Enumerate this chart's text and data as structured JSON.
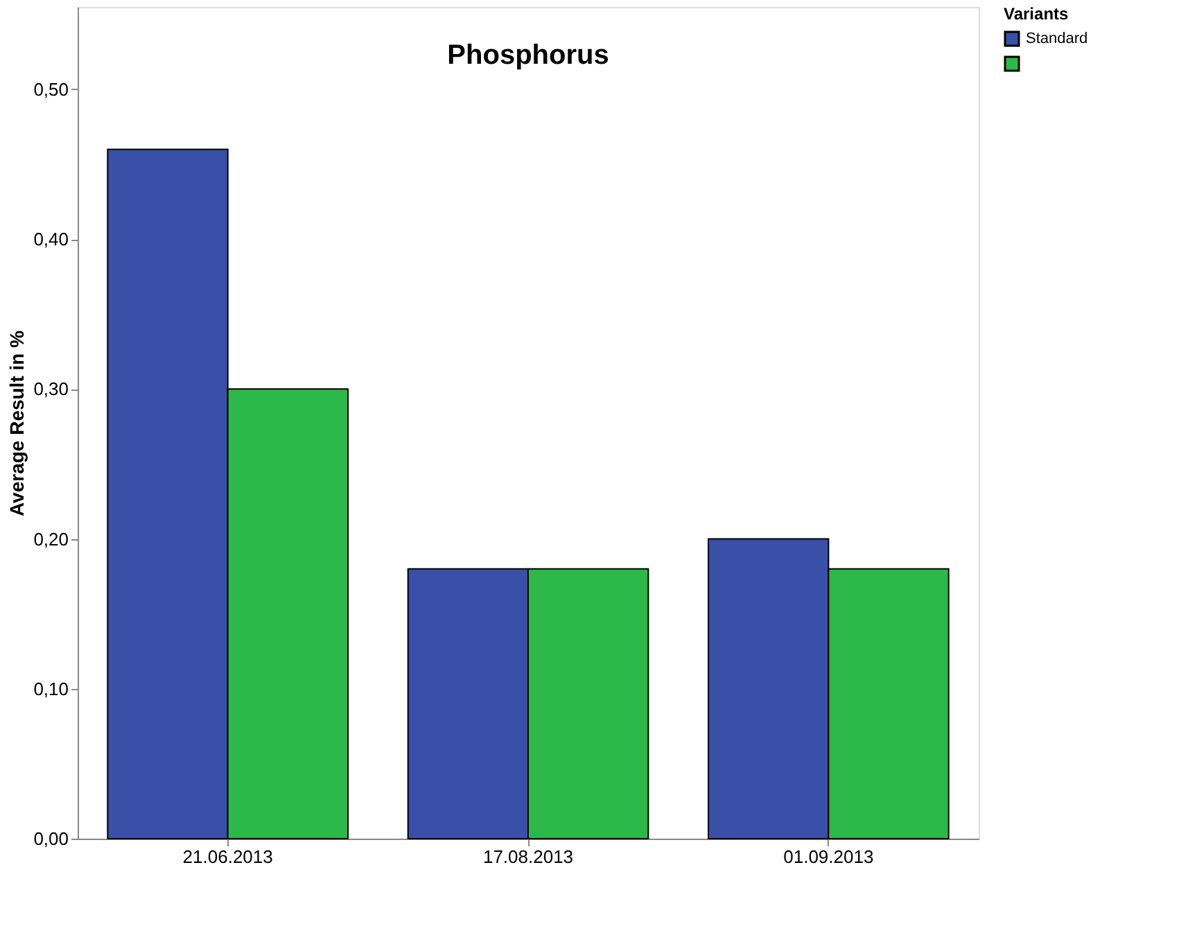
{
  "chart_data": {
    "type": "bar",
    "title": "Phosphorus",
    "ylabel": "Average Result in %",
    "legend_title": "Variants",
    "legend": "top right",
    "grid": false,
    "categories": [
      "21.06.2013",
      "17.08.2013",
      "01.09.2013"
    ],
    "series": [
      {
        "name": "Standard",
        "color": "#3a4fa8",
        "values": [
          0.46,
          0.18,
          0.2
        ]
      },
      {
        "color": "#2db84a",
        "values": [
          0.3,
          0.18,
          0.18
        ]
      }
    ],
    "ylim": [
      0,
      0.555
    ],
    "yticks": [
      {
        "value": 0,
        "label": "0,00"
      },
      {
        "value": 0.1,
        "label": "0,10"
      },
      {
        "value": 0.2,
        "label": "0,20"
      },
      {
        "value": 0.3,
        "label": "0,30"
      },
      {
        "value": 0.4,
        "label": "0,40"
      },
      {
        "value": 0.5,
        "label": "0,50"
      }
    ]
  }
}
